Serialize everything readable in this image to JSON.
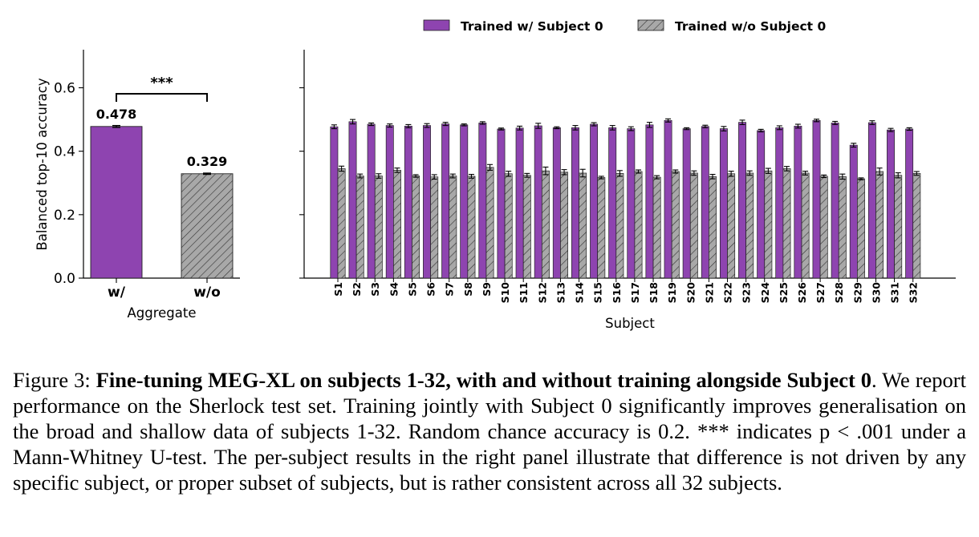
{
  "legend": {
    "items": [
      {
        "label": "Trained w/ Subject 0",
        "color": "#8e44b0",
        "hatch": false
      },
      {
        "label": "Trained w/o Subject 0",
        "color": "#a8a8a8",
        "hatch": true
      }
    ],
    "placement": "top-center"
  },
  "chart_data": [
    {
      "type": "bar",
      "categories": [
        "w/",
        "w/o"
      ],
      "values": [
        0.478,
        0.329
      ],
      "errors": [
        0.003,
        0.002
      ],
      "data_labels": [
        "0.478",
        "0.329"
      ],
      "colors": [
        "#8e44b0",
        "#a8a8a8"
      ],
      "xlabel": "Aggregate",
      "ylabel": "Balanced top-10 accuracy",
      "ylim": [
        0,
        0.72
      ],
      "yticks": [
        "0.0",
        "0.2",
        "0.4",
        "0.6"
      ],
      "significance": "***",
      "grid": false
    },
    {
      "type": "bar",
      "categories": [
        "S1",
        "S2",
        "S3",
        "S4",
        "S5",
        "S6",
        "S7",
        "S8",
        "S9",
        "S10",
        "S11",
        "S12",
        "S13",
        "S14",
        "S15",
        "S16",
        "S17",
        "S18",
        "S19",
        "S20",
        "S21",
        "S22",
        "S23",
        "S24",
        "S25",
        "S26",
        "S27",
        "S28",
        "S29",
        "S30",
        "S31",
        "S32"
      ],
      "series": [
        {
          "name": "Trained w/ Subject 0",
          "values": [
            0.477,
            0.493,
            0.485,
            0.481,
            0.479,
            0.481,
            0.486,
            0.483,
            0.489,
            0.47,
            0.473,
            0.48,
            0.474,
            0.474,
            0.485,
            0.474,
            0.471,
            0.483,
            0.497,
            0.471,
            0.478,
            0.471,
            0.491,
            0.465,
            0.474,
            0.479,
            0.497,
            0.489,
            0.419,
            0.49,
            0.467,
            0.47
          ],
          "errors": [
            0.006,
            0.007,
            0.004,
            0.005,
            0.005,
            0.006,
            0.005,
            0.003,
            0.004,
            0.003,
            0.006,
            0.008,
            0.003,
            0.007,
            0.005,
            0.007,
            0.006,
            0.008,
            0.005,
            0.003,
            0.004,
            0.007,
            0.007,
            0.004,
            0.006,
            0.006,
            0.004,
            0.005,
            0.006,
            0.006,
            0.005,
            0.004
          ]
        },
        {
          "name": "Trained w/o Subject 0",
          "values": [
            0.345,
            0.322,
            0.322,
            0.34,
            0.322,
            0.319,
            0.322,
            0.321,
            0.349,
            0.329,
            0.324,
            0.338,
            0.334,
            0.331,
            0.317,
            0.33,
            0.336,
            0.318,
            0.336,
            0.331,
            0.32,
            0.329,
            0.331,
            0.338,
            0.345,
            0.331,
            0.321,
            0.32,
            0.313,
            0.336,
            0.324,
            0.33
          ],
          "errors": [
            0.008,
            0.006,
            0.007,
            0.007,
            0.004,
            0.007,
            0.006,
            0.006,
            0.009,
            0.008,
            0.006,
            0.012,
            0.008,
            0.012,
            0.004,
            0.009,
            0.005,
            0.005,
            0.005,
            0.007,
            0.007,
            0.008,
            0.007,
            0.008,
            0.007,
            0.006,
            0.004,
            0.008,
            0.003,
            0.011,
            0.008,
            0.006
          ]
        }
      ],
      "colors": [
        "#8e44b0",
        "#a8a8a8"
      ],
      "xlabel": "Subject",
      "ylim": [
        0,
        0.72
      ],
      "grid": false
    }
  ],
  "caption": {
    "prefix": "Figure 3: ",
    "bold": "Fine-tuning MEG-XL on subjects 1-32, with and without training alongside Subject 0",
    "rest": ". We report performance on the Sherlock test set. Training jointly with Subject 0 significantly improves generalisation on the broad and shallow data of subjects 1-32. Random chance accuracy is 0.2. *** indicates p < .001 under a Mann-Whitney U-test. The per-subject results in the right panel illustrate that difference is not driven by any specific subject, or proper subset of subjects, but is rather consistent across all 32 subjects."
  }
}
